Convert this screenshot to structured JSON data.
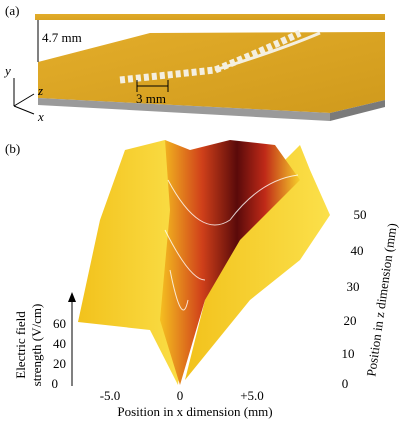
{
  "panel_a": {
    "label": "(a)",
    "gap": "4.7 mm",
    "period": "3 mm",
    "axes": {
      "y": "y",
      "z": "z",
      "x": "x"
    }
  },
  "panel_b": {
    "label": "(b)",
    "y_axis": {
      "title_lines": [
        "Electric field",
        "strength (V/cm)"
      ],
      "ticks": [
        "0",
        "20",
        "40",
        "60"
      ]
    },
    "x_axis": {
      "title": "Position in x dimension (mm)",
      "ticks": [
        "-5.0",
        "0",
        "+5.0"
      ]
    },
    "z_axis": {
      "title": "Position in z dimension (mm)",
      "ticks": [
        "0",
        "10",
        "20",
        "30",
        "40",
        "50"
      ]
    }
  }
}
